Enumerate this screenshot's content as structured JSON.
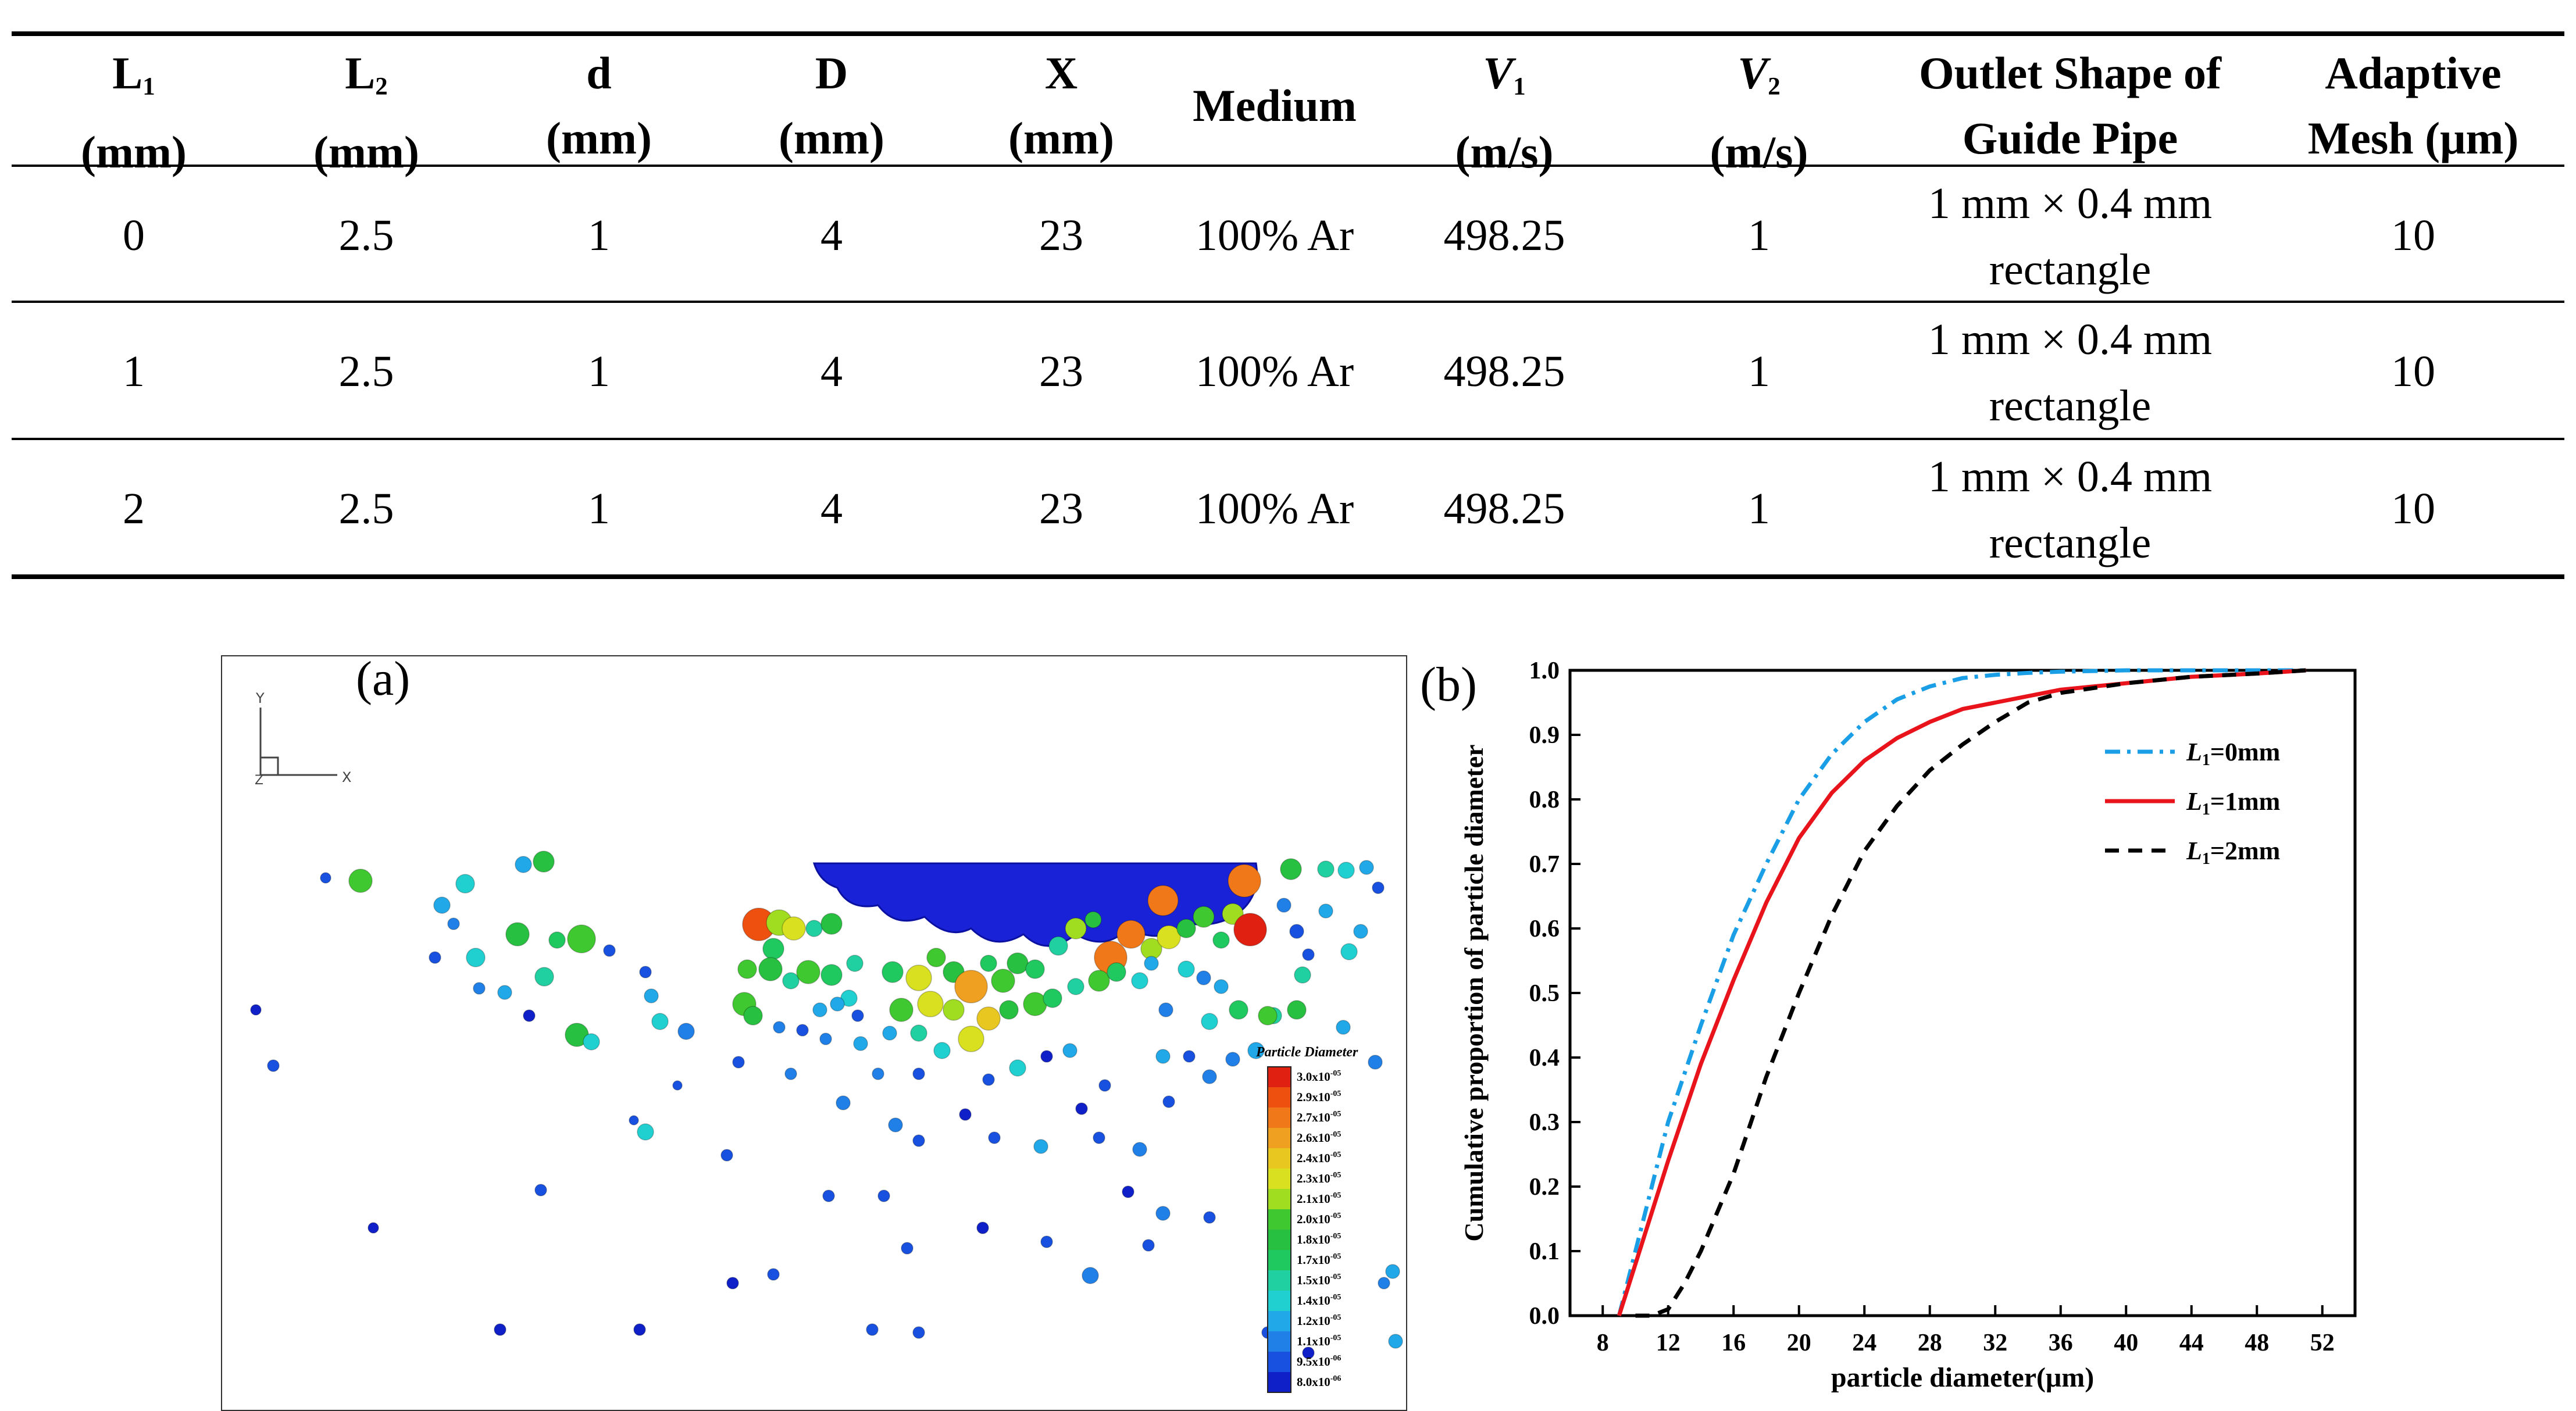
{
  "table": {
    "headers": [
      {
        "main": "L",
        "sub": "1",
        "unit": "(mm)"
      },
      {
        "main": "L",
        "sub": "2",
        "unit": "(mm)"
      },
      {
        "main": "d",
        "sub": "",
        "unit": "(mm)"
      },
      {
        "main": "D",
        "sub": "",
        "unit": "(mm)"
      },
      {
        "main": "X",
        "sub": "",
        "unit": "(mm)"
      },
      {
        "main": "Medium",
        "sub": "",
        "unit": ""
      },
      {
        "main": "V",
        "sub": "1",
        "unit": "(m/s)"
      },
      {
        "main": "V",
        "sub": "2",
        "unit": "(m/s)"
      },
      {
        "main": "Outlet Shape of",
        "sub": "",
        "unit": "Guide Pipe"
      },
      {
        "main": "Adaptive",
        "sub": "",
        "unit": "Mesh (μm)"
      }
    ],
    "rows": [
      [
        "0",
        "2.5",
        "1",
        "4",
        "23",
        "100% Ar",
        "498.25",
        "1",
        "1 mm × 0.4 mm",
        "rectangle",
        "10"
      ],
      [
        "1",
        "2.5",
        "1",
        "4",
        "23",
        "100% Ar",
        "498.25",
        "1",
        "1 mm × 0.4 mm",
        "rectangle",
        "10"
      ],
      [
        "2",
        "2.5",
        "1",
        "4",
        "23",
        "100% Ar",
        "498.25",
        "1",
        "1 mm × 0.4 mm",
        "rectangle",
        "10"
      ]
    ]
  },
  "figure_a": {
    "label": "(a)",
    "axis_y": "Y",
    "axis_x": "X",
    "axis_z": "Z",
    "colorbar_title": "Particle Diameter",
    "colorbar_ticks": [
      {
        "mant": "3.0x10",
        "exp": "-05"
      },
      {
        "mant": "2.9x10",
        "exp": "-05"
      },
      {
        "mant": "2.7x10",
        "exp": "-05"
      },
      {
        "mant": "2.6x10",
        "exp": "-05"
      },
      {
        "mant": "2.4x10",
        "exp": "-05"
      },
      {
        "mant": "2.3x10",
        "exp": "-05"
      },
      {
        "mant": "2.1x10",
        "exp": "-05"
      },
      {
        "mant": "2.0x10",
        "exp": "-05"
      },
      {
        "mant": "1.8x10",
        "exp": "-05"
      },
      {
        "mant": "1.7x10",
        "exp": "-05"
      },
      {
        "mant": "1.5x10",
        "exp": "-05"
      },
      {
        "mant": "1.4x10",
        "exp": "-05"
      },
      {
        "mant": "1.2x10",
        "exp": "-05"
      },
      {
        "mant": "1.1x10",
        "exp": "-05"
      },
      {
        "mant": "9.5x10",
        "exp": "-06"
      },
      {
        "mant": "8.0x10",
        "exp": "-06"
      }
    ],
    "colorbar_colors": [
      "#e02010",
      "#ee5010",
      "#f07818",
      "#f0a020",
      "#e8c820",
      "#d8e020",
      "#a0dc20",
      "#40c830",
      "#28c040",
      "#20c860",
      "#20d0a0",
      "#20d0d0",
      "#20a8e8",
      "#2080e8",
      "#1850e0",
      "#1020c8"
    ]
  },
  "chart_data": {
    "type": "line",
    "title": "",
    "label": "(b)",
    "xlabel": "particle diameter(μm)",
    "ylabel": "Cumulative proportion of particle diameter",
    "xlim": [
      6,
      54
    ],
    "ylim": [
      0,
      1.0
    ],
    "xticks": [
      8,
      12,
      16,
      20,
      24,
      28,
      32,
      36,
      40,
      44,
      48,
      52
    ],
    "yticks": [
      0.0,
      0.1,
      0.2,
      0.3,
      0.4,
      0.5,
      0.6,
      0.7,
      0.8,
      0.9,
      1.0
    ],
    "legend_position": "upper-right",
    "series": [
      {
        "name": "L",
        "sub": "1",
        "suffix": "=0mm",
        "color": "#1a9ee6",
        "style": "dashdot",
        "x": [
          9,
          10,
          11,
          12,
          14,
          16,
          18,
          20,
          22,
          24,
          26,
          28,
          30,
          32,
          34,
          36,
          40,
          44,
          48,
          51
        ],
        "y": [
          0.0,
          0.1,
          0.2,
          0.3,
          0.45,
          0.59,
          0.7,
          0.8,
          0.87,
          0.92,
          0.955,
          0.975,
          0.988,
          0.993,
          0.996,
          0.998,
          1.0,
          1.0,
          1.0,
          1.0
        ]
      },
      {
        "name": "L",
        "sub": "1",
        "suffix": "=1mm",
        "color": "#e8131b",
        "style": "solid",
        "x": [
          9,
          10,
          11,
          12,
          14,
          16,
          18,
          20,
          22,
          24,
          26,
          28,
          30,
          32,
          34,
          36,
          40,
          44,
          48,
          51
        ],
        "y": [
          0.0,
          0.08,
          0.16,
          0.24,
          0.39,
          0.52,
          0.64,
          0.74,
          0.81,
          0.86,
          0.895,
          0.92,
          0.94,
          0.95,
          0.96,
          0.97,
          0.98,
          0.99,
          0.995,
          1.0
        ]
      },
      {
        "name": "L",
        "sub": "1",
        "suffix": "=2mm",
        "color": "#000000",
        "style": "dashed",
        "x": [
          10,
          11,
          12,
          13,
          14,
          16,
          18,
          20,
          22,
          24,
          26,
          28,
          30,
          32,
          34,
          36,
          40,
          44,
          48,
          51
        ],
        "y": [
          0.0,
          0.0,
          0.01,
          0.05,
          0.1,
          0.22,
          0.37,
          0.5,
          0.62,
          0.72,
          0.79,
          0.845,
          0.885,
          0.92,
          0.95,
          0.965,
          0.98,
          0.99,
          0.995,
          1.0
        ]
      }
    ]
  }
}
